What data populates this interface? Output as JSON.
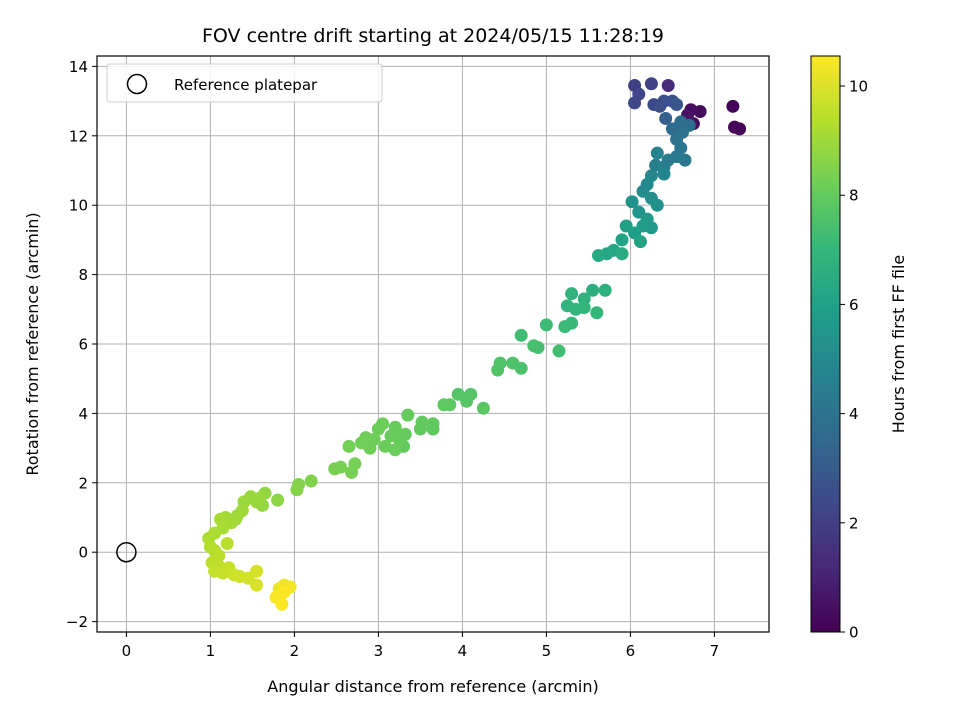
{
  "chart_data": {
    "type": "scatter",
    "title": "FOV centre drift starting at 2024/05/15 11:28:19",
    "xlabel": "Angular distance from reference (arcmin)",
    "ylabel": "Rotation from reference (arcmin)",
    "xlim": [
      -0.35,
      7.65
    ],
    "ylim": [
      -2.3,
      14.3
    ],
    "xticks": [
      "0",
      "1",
      "2",
      "3",
      "4",
      "5",
      "6",
      "7"
    ],
    "yticks": [
      "−2",
      "0",
      "2",
      "4",
      "6",
      "8",
      "10",
      "12",
      "14"
    ],
    "grid": true,
    "legend": {
      "placement": "top-left",
      "label": "Reference platepar"
    },
    "reference_point": {
      "x": 0,
      "y": 0
    },
    "colorbar": {
      "label": "Hours from first FF file",
      "range": [
        0,
        10.55
      ],
      "ticks": [
        "0",
        "2",
        "4",
        "6",
        "8",
        "10"
      ],
      "colormap": "viridis",
      "colormap_stops": [
        "#440154",
        "#482878",
        "#3e4989",
        "#31688e",
        "#26828e",
        "#1f9e89",
        "#35b779",
        "#6ece58",
        "#b5de2b",
        "#fde725"
      ]
    },
    "points": [
      {
        "x": 7.3,
        "y": 12.2,
        "t": 0.05
      },
      {
        "x": 7.24,
        "y": 12.25,
        "t": 0.1
      },
      {
        "x": 7.22,
        "y": 12.85,
        "t": 0.15
      },
      {
        "x": 6.83,
        "y": 12.7,
        "t": 0.3
      },
      {
        "x": 6.72,
        "y": 12.75,
        "t": 0.35
      },
      {
        "x": 6.75,
        "y": 12.35,
        "t": 0.45
      },
      {
        "x": 6.68,
        "y": 12.6,
        "t": 0.55
      },
      {
        "x": 6.45,
        "y": 13.45,
        "t": 1.3
      },
      {
        "x": 6.05,
        "y": 13.45,
        "t": 2.0
      },
      {
        "x": 6.25,
        "y": 13.5,
        "t": 2.1
      },
      {
        "x": 6.1,
        "y": 13.2,
        "t": 2.2
      },
      {
        "x": 6.05,
        "y": 12.95,
        "t": 2.3
      },
      {
        "x": 6.28,
        "y": 12.9,
        "t": 2.4
      },
      {
        "x": 6.35,
        "y": 12.85,
        "t": 2.5
      },
      {
        "x": 6.4,
        "y": 13.0,
        "t": 2.6
      },
      {
        "x": 6.5,
        "y": 13.0,
        "t": 2.7
      },
      {
        "x": 6.55,
        "y": 12.9,
        "t": 2.8
      },
      {
        "x": 6.42,
        "y": 12.5,
        "t": 3.2
      },
      {
        "x": 6.5,
        "y": 12.2,
        "t": 3.6
      },
      {
        "x": 6.6,
        "y": 12.4,
        "t": 3.7
      },
      {
        "x": 6.7,
        "y": 12.3,
        "t": 3.8
      },
      {
        "x": 6.62,
        "y": 12.1,
        "t": 3.9
      },
      {
        "x": 6.55,
        "y": 11.9,
        "t": 4.0
      },
      {
        "x": 6.6,
        "y": 11.65,
        "t": 4.1
      },
      {
        "x": 6.65,
        "y": 11.3,
        "t": 4.2
      },
      {
        "x": 6.55,
        "y": 11.4,
        "t": 4.3
      },
      {
        "x": 6.45,
        "y": 11.3,
        "t": 4.4
      },
      {
        "x": 6.4,
        "y": 11.1,
        "t": 4.5
      },
      {
        "x": 6.3,
        "y": 11.15,
        "t": 4.6
      },
      {
        "x": 6.32,
        "y": 11.5,
        "t": 4.7
      },
      {
        "x": 6.4,
        "y": 10.9,
        "t": 4.8
      },
      {
        "x": 6.25,
        "y": 10.85,
        "t": 4.9
      },
      {
        "x": 6.2,
        "y": 10.6,
        "t": 5.0
      },
      {
        "x": 6.15,
        "y": 10.4,
        "t": 5.1
      },
      {
        "x": 6.25,
        "y": 10.2,
        "t": 5.2
      },
      {
        "x": 6.32,
        "y": 10.0,
        "t": 5.3
      },
      {
        "x": 6.02,
        "y": 10.1,
        "t": 5.4
      },
      {
        "x": 6.1,
        "y": 9.8,
        "t": 5.5
      },
      {
        "x": 6.2,
        "y": 9.6,
        "t": 5.6
      },
      {
        "x": 6.25,
        "y": 9.35,
        "t": 5.7
      },
      {
        "x": 6.15,
        "y": 9.4,
        "t": 5.8
      },
      {
        "x": 6.05,
        "y": 9.2,
        "t": 5.9
      },
      {
        "x": 5.95,
        "y": 9.4,
        "t": 6.0
      },
      {
        "x": 5.9,
        "y": 9.0,
        "t": 6.1
      },
      {
        "x": 6.12,
        "y": 8.95,
        "t": 6.15
      },
      {
        "x": 5.8,
        "y": 8.7,
        "t": 6.2
      },
      {
        "x": 5.72,
        "y": 8.6,
        "t": 6.3
      },
      {
        "x": 5.62,
        "y": 8.55,
        "t": 6.4
      },
      {
        "x": 5.9,
        "y": 8.6,
        "t": 6.45
      },
      {
        "x": 5.55,
        "y": 7.55,
        "t": 6.6
      },
      {
        "x": 5.7,
        "y": 7.55,
        "t": 6.65
      },
      {
        "x": 5.45,
        "y": 7.3,
        "t": 6.75
      },
      {
        "x": 5.3,
        "y": 7.45,
        "t": 6.8
      },
      {
        "x": 5.25,
        "y": 7.1,
        "t": 6.85
      },
      {
        "x": 5.35,
        "y": 7.0,
        "t": 6.9
      },
      {
        "x": 5.45,
        "y": 7.05,
        "t": 6.95
      },
      {
        "x": 5.6,
        "y": 6.9,
        "t": 7.0
      },
      {
        "x": 5.3,
        "y": 6.6,
        "t": 7.1
      },
      {
        "x": 5.22,
        "y": 6.5,
        "t": 7.15
      },
      {
        "x": 5.15,
        "y": 5.8,
        "t": 7.3
      },
      {
        "x": 5.0,
        "y": 6.55,
        "t": 7.2
      },
      {
        "x": 4.9,
        "y": 5.9,
        "t": 7.4
      },
      {
        "x": 4.85,
        "y": 5.95,
        "t": 7.45
      },
      {
        "x": 4.7,
        "y": 6.25,
        "t": 7.25
      },
      {
        "x": 4.7,
        "y": 5.3,
        "t": 7.5
      },
      {
        "x": 4.6,
        "y": 5.45,
        "t": 7.55
      },
      {
        "x": 4.45,
        "y": 5.45,
        "t": 7.6
      },
      {
        "x": 4.42,
        "y": 5.25,
        "t": 7.65
      },
      {
        "x": 4.25,
        "y": 4.15,
        "t": 7.8
      },
      {
        "x": 4.1,
        "y": 4.55,
        "t": 7.7
      },
      {
        "x": 4.05,
        "y": 4.35,
        "t": 7.75
      },
      {
        "x": 3.95,
        "y": 4.55,
        "t": 7.72
      },
      {
        "x": 3.85,
        "y": 4.25,
        "t": 7.85
      },
      {
        "x": 3.78,
        "y": 4.25,
        "t": 7.88
      },
      {
        "x": 3.65,
        "y": 3.55,
        "t": 7.9
      },
      {
        "x": 3.65,
        "y": 3.7,
        "t": 7.92
      },
      {
        "x": 3.52,
        "y": 3.75,
        "t": 7.94
      },
      {
        "x": 3.5,
        "y": 3.55,
        "t": 7.96
      },
      {
        "x": 3.35,
        "y": 3.95,
        "t": 7.98
      },
      {
        "x": 3.32,
        "y": 3.4,
        "t": 8.0
      },
      {
        "x": 3.3,
        "y": 3.05,
        "t": 8.02
      },
      {
        "x": 3.25,
        "y": 3.25,
        "t": 8.04
      },
      {
        "x": 3.2,
        "y": 3.6,
        "t": 8.06
      },
      {
        "x": 3.15,
        "y": 3.35,
        "t": 8.08
      },
      {
        "x": 3.2,
        "y": 2.95,
        "t": 8.1
      },
      {
        "x": 3.08,
        "y": 3.05,
        "t": 8.12
      },
      {
        "x": 3.05,
        "y": 3.7,
        "t": 8.14
      },
      {
        "x": 3.0,
        "y": 3.55,
        "t": 8.16
      },
      {
        "x": 2.95,
        "y": 3.25,
        "t": 8.18
      },
      {
        "x": 2.9,
        "y": 3.0,
        "t": 8.2
      },
      {
        "x": 2.85,
        "y": 3.3,
        "t": 8.22
      },
      {
        "x": 2.8,
        "y": 3.15,
        "t": 8.24
      },
      {
        "x": 2.68,
        "y": 2.3,
        "t": 8.3
      },
      {
        "x": 2.72,
        "y": 2.55,
        "t": 8.32
      },
      {
        "x": 2.65,
        "y": 3.05,
        "t": 8.28
      },
      {
        "x": 2.55,
        "y": 2.45,
        "t": 8.34
      },
      {
        "x": 2.48,
        "y": 2.4,
        "t": 8.36
      },
      {
        "x": 2.2,
        "y": 2.05,
        "t": 8.5
      },
      {
        "x": 2.05,
        "y": 1.95,
        "t": 8.55
      },
      {
        "x": 2.03,
        "y": 1.8,
        "t": 8.58
      },
      {
        "x": 1.8,
        "y": 1.5,
        "t": 8.7
      },
      {
        "x": 1.65,
        "y": 1.7,
        "t": 8.8
      },
      {
        "x": 1.62,
        "y": 1.35,
        "t": 8.85
      },
      {
        "x": 1.58,
        "y": 1.55,
        "t": 8.88
      },
      {
        "x": 1.55,
        "y": 1.45,
        "t": 8.9
      },
      {
        "x": 1.48,
        "y": 1.6,
        "t": 8.92
      },
      {
        "x": 1.4,
        "y": 1.45,
        "t": 8.95
      },
      {
        "x": 1.38,
        "y": 1.2,
        "t": 8.98
      },
      {
        "x": 1.32,
        "y": 1.05,
        "t": 9.0
      },
      {
        "x": 1.3,
        "y": 0.95,
        "t": 9.05
      },
      {
        "x": 1.25,
        "y": 0.85,
        "t": 9.1
      },
      {
        "x": 1.18,
        "y": 1.0,
        "t": 9.12
      },
      {
        "x": 1.12,
        "y": 0.95,
        "t": 9.14
      },
      {
        "x": 1.15,
        "y": 0.7,
        "t": 9.16
      },
      {
        "x": 1.05,
        "y": 0.55,
        "t": 9.2
      },
      {
        "x": 0.98,
        "y": 0.4,
        "t": 9.25
      },
      {
        "x": 1.0,
        "y": 0.15,
        "t": 9.3
      },
      {
        "x": 1.05,
        "y": 0.05,
        "t": 9.35
      },
      {
        "x": 1.2,
        "y": 0.25,
        "t": 9.4
      },
      {
        "x": 1.1,
        "y": -0.1,
        "t": 9.45
      },
      {
        "x": 1.02,
        "y": -0.3,
        "t": 9.5
      },
      {
        "x": 1.1,
        "y": -0.4,
        "t": 9.55
      },
      {
        "x": 1.05,
        "y": -0.55,
        "t": 9.6
      },
      {
        "x": 1.15,
        "y": -0.6,
        "t": 9.65
      },
      {
        "x": 1.22,
        "y": -0.45,
        "t": 9.7
      },
      {
        "x": 1.28,
        "y": -0.65,
        "t": 9.75
      },
      {
        "x": 1.35,
        "y": -0.7,
        "t": 9.8
      },
      {
        "x": 1.45,
        "y": -0.75,
        "t": 9.85
      },
      {
        "x": 1.55,
        "y": -0.55,
        "t": 9.9
      },
      {
        "x": 1.55,
        "y": -0.95,
        "t": 9.95
      },
      {
        "x": 1.82,
        "y": -1.05,
        "t": 10.2
      },
      {
        "x": 1.88,
        "y": -0.95,
        "t": 10.3
      },
      {
        "x": 1.95,
        "y": -1.0,
        "t": 10.4
      },
      {
        "x": 1.78,
        "y": -1.3,
        "t": 10.45
      },
      {
        "x": 1.85,
        "y": -1.5,
        "t": 10.5
      },
      {
        "x": 1.88,
        "y": -1.15,
        "t": 10.55
      }
    ]
  }
}
